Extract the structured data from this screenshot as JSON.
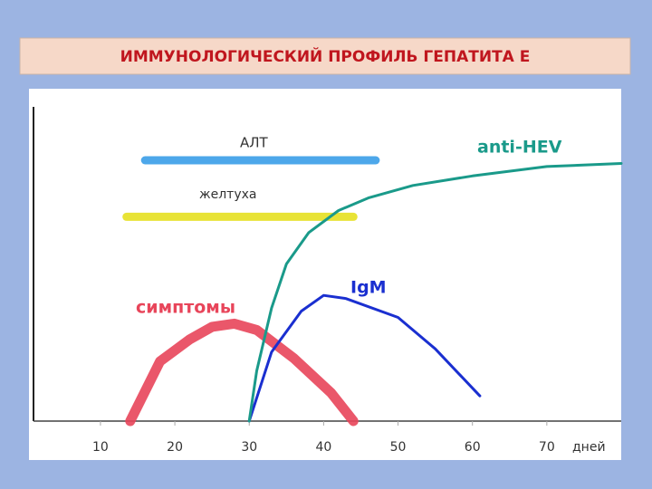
{
  "chart_data": {
    "type": "line",
    "title": "ИММУНОЛОГИЧЕСКИЙ ПРОФИЛЬ ГЕПАТИТА Е",
    "x_label": "дней",
    "xlim": [
      1,
      80
    ],
    "xticks": [
      10,
      20,
      30,
      40,
      50,
      60,
      70
    ],
    "ylim": [
      0,
      100
    ],
    "series": [
      {
        "name": "АЛТ",
        "color": "#3a9de8",
        "width": 9,
        "x": [
          16,
          47
        ],
        "values": [
          83,
          83
        ]
      },
      {
        "name": "желтуха",
        "color": "#e6e020",
        "width": 9,
        "x": [
          13.5,
          44
        ],
        "values": [
          65,
          65
        ]
      },
      {
        "name": "симптомы",
        "color": "#e8455a",
        "width": 11,
        "x": [
          14,
          18,
          22,
          25,
          28,
          31,
          36,
          41,
          44
        ],
        "values": [
          0,
          19,
          26,
          30,
          31,
          29,
          20,
          9,
          0
        ]
      },
      {
        "name": "IgM",
        "color": "#1a2fd0",
        "width": 3,
        "x": [
          30,
          33,
          37,
          40,
          43,
          50,
          55,
          61
        ],
        "values": [
          0,
          22,
          35,
          40,
          39,
          33,
          23,
          8
        ]
      },
      {
        "name": "anti-HEV",
        "color": "#1a9a8a",
        "width": 3,
        "x": [
          30,
          31,
          33,
          35,
          38,
          42,
          46,
          52,
          60,
          70,
          80
        ],
        "values": [
          0,
          16,
          36,
          50,
          60,
          67,
          71,
          75,
          78,
          81,
          82
        ]
      }
    ]
  }
}
